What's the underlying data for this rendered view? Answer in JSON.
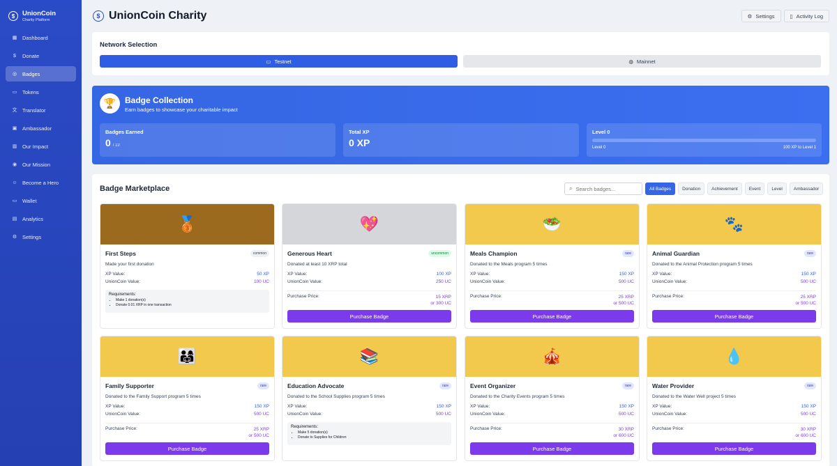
{
  "brand": {
    "name": "UnionCoin",
    "sub": "Charity Platform"
  },
  "nav": [
    {
      "label": "Dashboard",
      "icon": "grid-icon",
      "glyph": "▦"
    },
    {
      "label": "Donate",
      "icon": "dollar-icon",
      "glyph": "$"
    },
    {
      "label": "Badges",
      "icon": "badge-icon",
      "glyph": "◎"
    },
    {
      "label": "Tokens",
      "icon": "card-icon",
      "glyph": "▭"
    },
    {
      "label": "Translator",
      "icon": "translate-icon",
      "glyph": "文"
    },
    {
      "label": "Ambassador",
      "icon": "image-icon",
      "glyph": "▣"
    },
    {
      "label": "Our Impact",
      "icon": "chart-icon",
      "glyph": "▥"
    },
    {
      "label": "Our Mission",
      "icon": "target-icon",
      "glyph": "◉"
    },
    {
      "label": "Become a Hero",
      "icon": "user-icon",
      "glyph": "☺"
    },
    {
      "label": "Wallet",
      "icon": "wallet-icon",
      "glyph": "▭"
    },
    {
      "label": "Analytics",
      "icon": "analytics-icon",
      "glyph": "▤"
    },
    {
      "label": "Settings",
      "icon": "gear-icon",
      "glyph": "⚙"
    }
  ],
  "header": {
    "title": "UnionCoin Charity",
    "settings": "Settings",
    "activity": "Activity Log"
  },
  "network": {
    "title": "Network Selection",
    "testnet": "Testnet",
    "mainnet": "Mainnet"
  },
  "collection": {
    "title": "Badge Collection",
    "subtitle": "Earn badges to showcase your charitable impact",
    "earned_label": "Badges Earned",
    "earned": "0",
    "earned_total": "/ 22",
    "xp_label": "Total XP",
    "xp": "0 XP",
    "level_label": "Level 0",
    "level_left": "Level 0",
    "level_right": "100 XP to Level 1",
    "level_progress": 0
  },
  "market": {
    "title": "Badge Marketplace",
    "search_placeholder": "Search badges...",
    "filters": [
      "All Badges",
      "Donation",
      "Achievement",
      "Event",
      "Level",
      "Ambassador"
    ],
    "labels": {
      "xp": "XP Value:",
      "uc": "UnionCoin Value:",
      "price": "Purchase Price:",
      "buy": "Purchase Badge",
      "req": "Requirements:"
    },
    "badges": [
      {
        "name": "First Steps",
        "rarity": "common",
        "desc": "Made your first donation",
        "xp": "50 XP",
        "uc": "100 UC",
        "emoji": "🥉",
        "bg": "#9c6a1e",
        "req": [
          "Make 1 donation(s)",
          "Donate 0.01 XRP in one transaction"
        ]
      },
      {
        "name": "Generous Heart",
        "rarity": "uncommon",
        "desc": "Donated at least 10 XRP total",
        "xp": "100 XP",
        "uc": "250 UC",
        "emoji": "💖",
        "bg": "#d4d6da",
        "price_xrp": "15 XRP",
        "price_uc": "or 300 UC"
      },
      {
        "name": "Meals Champion",
        "rarity": "rare",
        "desc": "Donated to the Meals program 5 times",
        "xp": "150 XP",
        "uc": "500 UC",
        "emoji": "🥗",
        "bg": "#f2c94c",
        "price_xrp": "25 XRP",
        "price_uc": "or 500 UC"
      },
      {
        "name": "Animal Guardian",
        "rarity": "rare",
        "desc": "Donated to the Animal Protection program 5 times",
        "xp": "150 XP",
        "uc": "500 UC",
        "emoji": "🐾",
        "bg": "#f2c94c",
        "price_xrp": "25 XRP",
        "price_uc": "or 500 UC"
      },
      {
        "name": "Family Supporter",
        "rarity": "rare",
        "desc": "Donated to the Family Support program 5 times",
        "xp": "150 XP",
        "uc": "500 UC",
        "emoji": "👨‍👩‍👧",
        "bg": "#f2c94c",
        "price_xrp": "25 XRP",
        "price_uc": "or 500 UC"
      },
      {
        "name": "Education Advocate",
        "rarity": "rare",
        "desc": "Donated to the School Supplies program 5 times",
        "xp": "150 XP",
        "uc": "500 UC",
        "emoji": "📚",
        "bg": "#f2c94c",
        "req": [
          "Make 5 donation(s)",
          "Donate to Supplies for Children"
        ]
      },
      {
        "name": "Event Organizer",
        "rarity": "rare",
        "desc": "Donated to the Charity Events program 5 times",
        "xp": "150 XP",
        "uc": "500 UC",
        "emoji": "🎪",
        "bg": "#f2c94c",
        "price_xrp": "30 XRP",
        "price_uc": "or 600 UC"
      },
      {
        "name": "Water Provider",
        "rarity": "rare",
        "desc": "Donated to the Water Well project 5 times",
        "xp": "150 XP",
        "uc": "500 UC",
        "emoji": "💧",
        "bg": "#f2c94c",
        "price_xrp": "30 XRP",
        "price_uc": "or 600 UC"
      }
    ]
  }
}
